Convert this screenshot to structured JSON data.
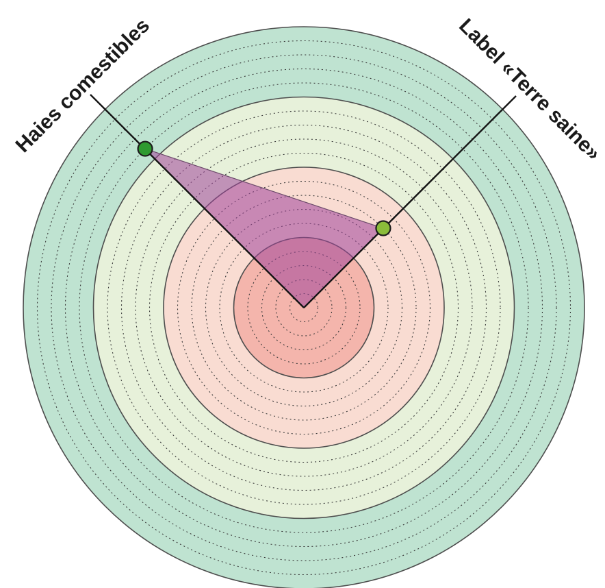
{
  "chart_data": {
    "type": "radar",
    "title": "",
    "axes": [
      {
        "name": "Label «Terre saine»",
        "value": 8
      },
      {
        "name": "Haies comestibles",
        "value": 16
      }
    ],
    "scale": {
      "min": 0,
      "max": 20,
      "minor_step": 1,
      "major_step": 5
    },
    "bands": [
      {
        "from": 0,
        "to": 5,
        "color": "#f4b5ac"
      },
      {
        "from": 5,
        "to": 10,
        "color": "#f9dcd2"
      },
      {
        "from": 10,
        "to": 15,
        "color": "#e7f1da"
      },
      {
        "from": 15,
        "to": 20,
        "color": "#bfe3d1"
      }
    ],
    "polygon_fill": "#a0449a",
    "point_colors": [
      "#8bbc3a",
      "#2e9a30"
    ]
  }
}
